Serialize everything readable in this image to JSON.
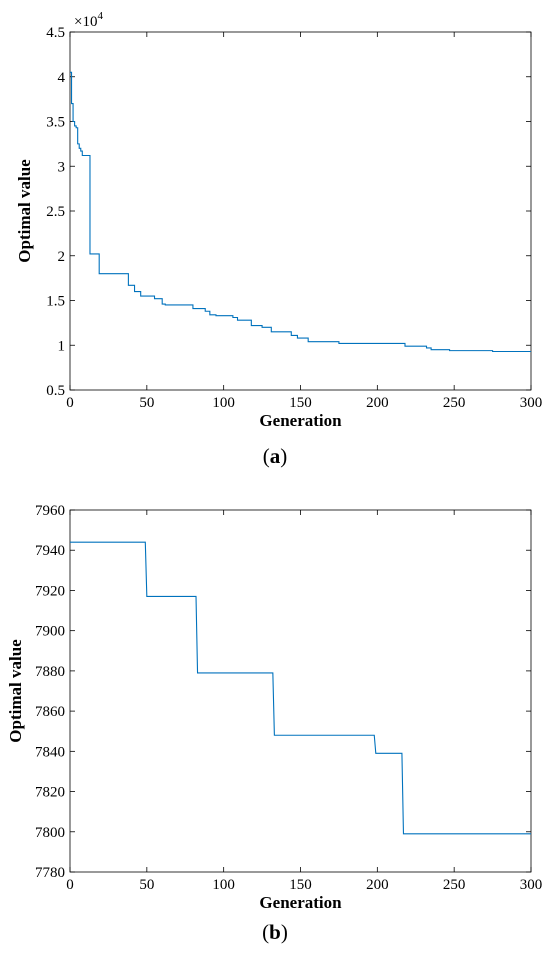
{
  "chart_data": [
    {
      "type": "line",
      "caption_open": "(",
      "caption_letter": "a",
      "caption_close": ")",
      "xlabel": "Generation",
      "ylabel": "Optimal value",
      "xlim": [
        0,
        300
      ],
      "ylim": [
        0.5,
        4.5
      ],
      "y_exponent_label": "×10",
      "y_exponent_power": "4",
      "xticks": [
        0,
        50,
        100,
        150,
        200,
        250,
        300
      ],
      "xtick_labels": [
        "0",
        "50",
        "100",
        "150",
        "200",
        "250",
        "300"
      ],
      "yticks": [
        0.5,
        1,
        1.5,
        2,
        2.5,
        3,
        3.5,
        4,
        4.5
      ],
      "ytick_labels": [
        "0.5",
        "1",
        "1.5",
        "2",
        "2.5",
        "3",
        "3.5",
        "4",
        "4.5"
      ],
      "grid": false,
      "line_color": "#0072BD",
      "series": [
        {
          "x": [
            0,
            1,
            1,
            2,
            2,
            3,
            3,
            4,
            4,
            5,
            5,
            6,
            6,
            7,
            7,
            8,
            8,
            9,
            9,
            13,
            13,
            14,
            14,
            19,
            19,
            23,
            23,
            38,
            38,
            42,
            42,
            46,
            46,
            48,
            48,
            55,
            55,
            60,
            60,
            62,
            62,
            80,
            80,
            88,
            88,
            91,
            91,
            95,
            95,
            106,
            106,
            109,
            109,
            118,
            118,
            125,
            125,
            131,
            131,
            144,
            144,
            148,
            148,
            155,
            155,
            175,
            175,
            218,
            218,
            232,
            232,
            235,
            235,
            247,
            247,
            275,
            275,
            300
          ],
          "y": [
            4.05,
            4.05,
            3.7,
            3.7,
            3.5,
            3.5,
            3.45,
            3.45,
            3.43,
            3.43,
            3.25,
            3.25,
            3.2,
            3.2,
            3.17,
            3.17,
            3.12,
            3.12,
            3.12,
            3.12,
            2.02,
            2.02,
            2.02,
            2.02,
            1.8,
            1.8,
            1.8,
            1.8,
            1.67,
            1.67,
            1.6,
            1.6,
            1.55,
            1.55,
            1.55,
            1.55,
            1.52,
            1.52,
            1.46,
            1.46,
            1.45,
            1.45,
            1.41,
            1.41,
            1.38,
            1.38,
            1.34,
            1.34,
            1.33,
            1.33,
            1.31,
            1.31,
            1.28,
            1.28,
            1.22,
            1.22,
            1.2,
            1.2,
            1.15,
            1.15,
            1.11,
            1.11,
            1.08,
            1.08,
            1.04,
            1.04,
            1.02,
            1.02,
            0.99,
            0.99,
            0.97,
            0.97,
            0.95,
            0.95,
            0.94,
            0.94,
            0.93,
            0.93
          ]
        }
      ]
    },
    {
      "type": "line",
      "caption_open": "(",
      "caption_letter": "b",
      "caption_close": ")",
      "xlabel": "Generation",
      "ylabel": "Optimal value",
      "xlim": [
        0,
        300
      ],
      "ylim": [
        7780,
        7960
      ],
      "xticks": [
        0,
        50,
        100,
        150,
        200,
        250,
        300
      ],
      "xtick_labels": [
        "0",
        "50",
        "100",
        "150",
        "200",
        "250",
        "300"
      ],
      "yticks": [
        7780,
        7800,
        7820,
        7840,
        7860,
        7880,
        7900,
        7920,
        7940,
        7960
      ],
      "ytick_labels": [
        "7780",
        "7800",
        "7820",
        "7840",
        "7860",
        "7880",
        "7900",
        "7920",
        "7940",
        "7960"
      ],
      "grid": false,
      "line_color": "#0072BD",
      "series": [
        {
          "x": [
            0,
            49,
            50,
            82,
            83,
            132,
            133,
            198,
            199,
            216,
            217,
            300
          ],
          "y": [
            7944,
            7944,
            7917,
            7917,
            7879,
            7879,
            7848,
            7848,
            7839,
            7839,
            7799,
            7799
          ]
        }
      ]
    }
  ]
}
